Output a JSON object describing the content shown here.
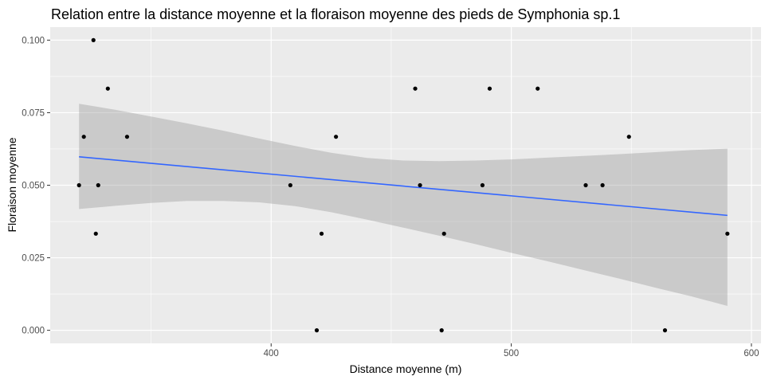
{
  "chart_data": {
    "type": "scatter",
    "title": "Relation entre la distance moyenne et la floraison moyenne des pieds de Symphonia sp.1",
    "xlabel": "Distance moyenne (m)",
    "ylabel": "Floraison moyenne",
    "xlim": [
      308,
      604
    ],
    "ylim": [
      -0.0045,
      0.1045
    ],
    "x_ticks": [
      400,
      500,
      600
    ],
    "x_tick_labels": [
      "400",
      "500",
      "600"
    ],
    "y_ticks": [
      0.0,
      0.025,
      0.05,
      0.075,
      0.1
    ],
    "y_tick_labels": [
      "0.000",
      "0.025",
      "0.050",
      "0.075",
      "0.100"
    ],
    "grid": true,
    "background": "#ebebeb",
    "points": [
      {
        "x": 320,
        "y": 0.05
      },
      {
        "x": 322,
        "y": 0.0667
      },
      {
        "x": 326,
        "y": 0.1
      },
      {
        "x": 327,
        "y": 0.0333
      },
      {
        "x": 328,
        "y": 0.05
      },
      {
        "x": 332,
        "y": 0.0833
      },
      {
        "x": 340,
        "y": 0.0667
      },
      {
        "x": 408,
        "y": 0.05
      },
      {
        "x": 419,
        "y": 0.0
      },
      {
        "x": 421,
        "y": 0.0333
      },
      {
        "x": 427,
        "y": 0.0667
      },
      {
        "x": 460,
        "y": 0.0833
      },
      {
        "x": 462,
        "y": 0.05
      },
      {
        "x": 471,
        "y": 0.0
      },
      {
        "x": 472,
        "y": 0.0333
      },
      {
        "x": 488,
        "y": 0.05
      },
      {
        "x": 491,
        "y": 0.0833
      },
      {
        "x": 511,
        "y": 0.0833
      },
      {
        "x": 531,
        "y": 0.05
      },
      {
        "x": 538,
        "y": 0.05
      },
      {
        "x": 549,
        "y": 0.0667
      },
      {
        "x": 564,
        "y": 0.0
      },
      {
        "x": 590,
        "y": 0.0333
      }
    ],
    "point_color": "#000000",
    "trend_line": {
      "method": "linear",
      "x": [
        320,
        590
      ],
      "y": [
        0.0598,
        0.0396
      ],
      "color": "#3366ff"
    },
    "confidence_band": {
      "x": [
        320,
        335,
        350,
        365,
        380,
        395,
        410,
        425,
        440,
        455,
        470,
        485,
        500,
        515,
        530,
        545,
        560,
        575,
        590
      ],
      "lower": [
        0.0418,
        0.0429,
        0.0439,
        0.0446,
        0.0446,
        0.0441,
        0.0428,
        0.0407,
        0.0381,
        0.0354,
        0.0326,
        0.0297,
        0.0267,
        0.0238,
        0.0208,
        0.0178,
        0.0147,
        0.0117,
        0.0084
      ],
      "upper": [
        0.0781,
        0.076,
        0.0737,
        0.0713,
        0.0688,
        0.0661,
        0.0635,
        0.0612,
        0.0594,
        0.0585,
        0.0583,
        0.0585,
        0.0589,
        0.0595,
        0.0601,
        0.0607,
        0.0614,
        0.0621,
        0.0626
      ],
      "color": "#999999"
    }
  }
}
